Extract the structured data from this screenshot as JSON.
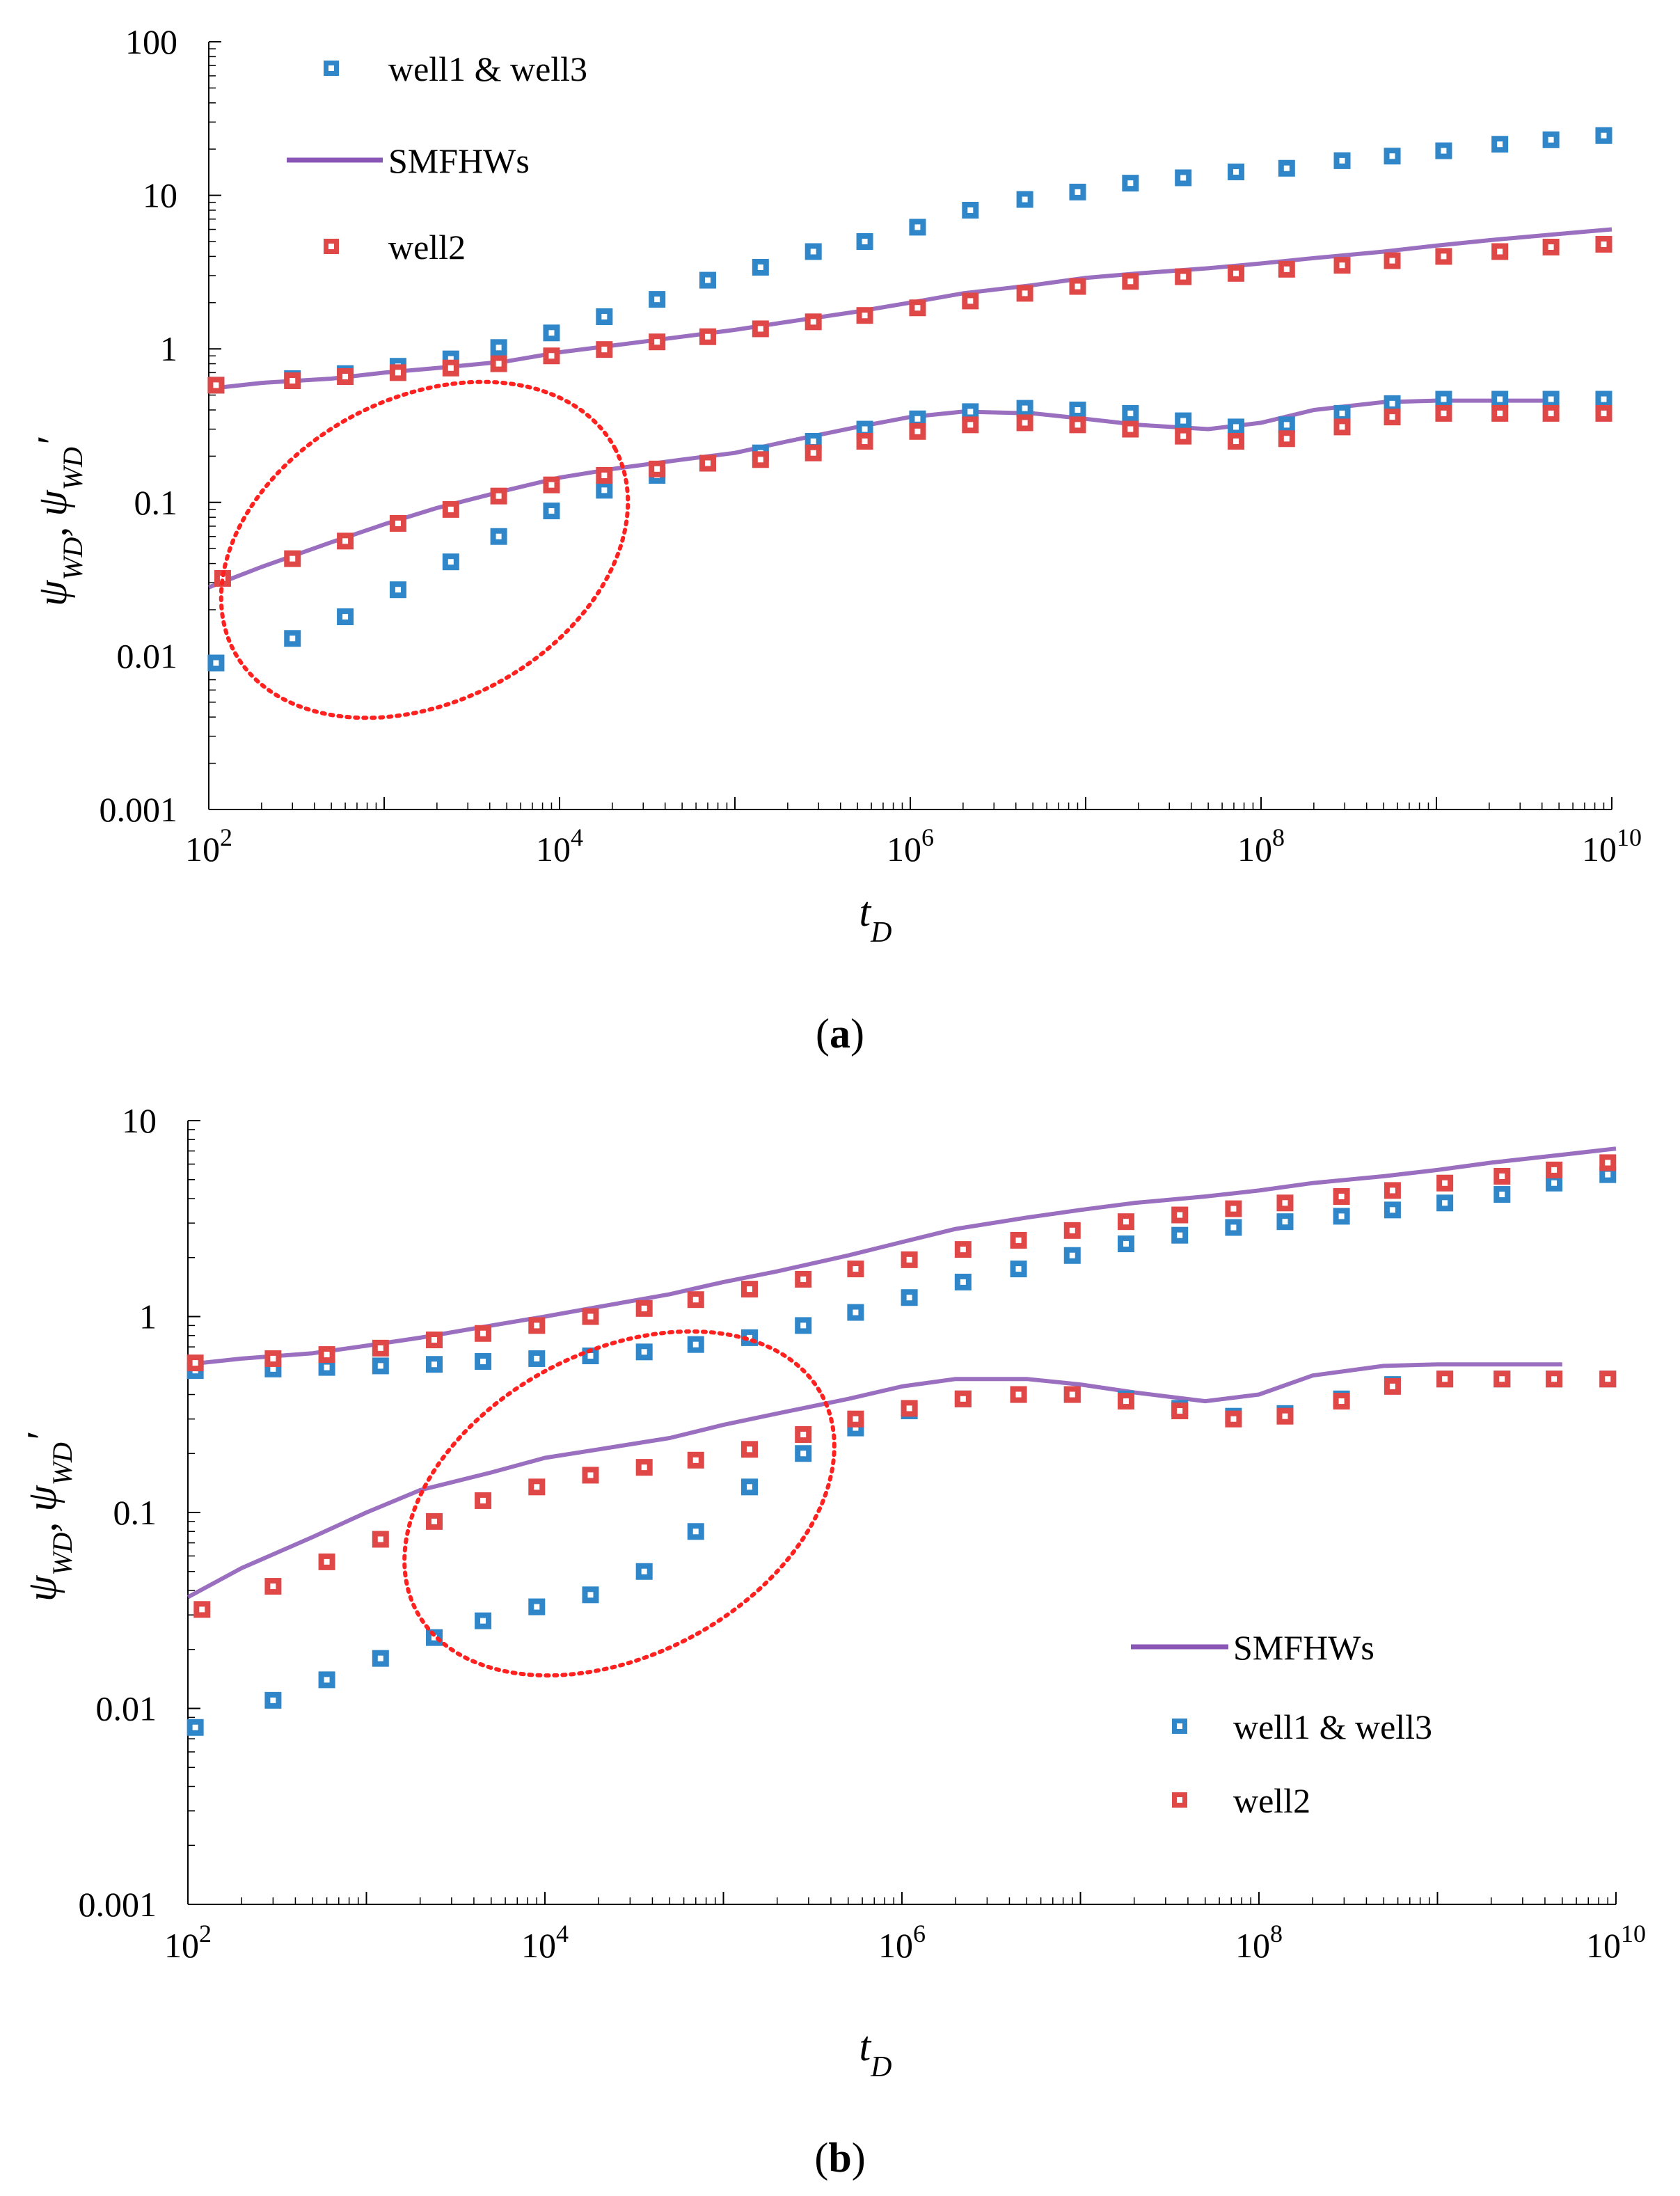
{
  "figure": {
    "panel_a_label": {
      "open": "(",
      "letter": "a",
      "close": ")"
    },
    "panel_b_label": {
      "open": "(",
      "letter": "b",
      "close": ")"
    }
  },
  "colors": {
    "blue": "#2f86c8",
    "red": "#e04848",
    "line": "#8a56b5",
    "ellipse": "#ff2020"
  },
  "chart_data": [
    {
      "type": "scatter",
      "panel": "a",
      "xscale": "log",
      "yscale": "log",
      "xlim": [
        100,
        10000000000
      ],
      "ylim": [
        0.001,
        100
      ],
      "xlabel": "tD",
      "ylabel": "ψWD, ψWD′",
      "xticks": [
        {
          "base": "10",
          "exp": "2"
        },
        {
          "base": "10",
          "exp": "4"
        },
        {
          "base": "10",
          "exp": "6"
        },
        {
          "base": "10",
          "exp": "8"
        },
        {
          "base": "10",
          "exp": "10"
        }
      ],
      "yticks": [
        "0.001",
        "0.01",
        "0.1",
        "1",
        "10",
        "100"
      ],
      "legend": {
        "position": "top-left",
        "entries": [
          "well1 & well3",
          "SMFHWs",
          "well2"
        ]
      },
      "series": [
        {
          "name": "well1 & well3",
          "kind": "markers",
          "color": "#2f86c8",
          "x": [
            110,
            300,
            600,
            1200,
            2400,
            4500,
            9000,
            18000,
            36000,
            70000,
            140000,
            280000,
            550000,
            1100000,
            2200000,
            4500000,
            9000000,
            18000000,
            36000000,
            72000000,
            140000000,
            290000000,
            560000000,
            1100000000,
            2300000000,
            4500000000,
            9000000000
          ],
          "y": [
            0.58,
            0.64,
            0.69,
            0.77,
            0.86,
            1.02,
            1.27,
            1.62,
            2.1,
            2.8,
            3.4,
            4.3,
            5.0,
            6.2,
            8.0,
            9.4,
            10.5,
            12.0,
            13.0,
            14.2,
            15.0,
            16.8,
            18.0,
            19.5,
            21.5,
            23.0,
            24.5
          ]
        },
        {
          "name": "well1 & well3 derivative",
          "kind": "markers",
          "color": "#2f86c8",
          "x": [
            110,
            300,
            600,
            1200,
            2400,
            4500,
            9000,
            18000,
            36000,
            70000,
            140000,
            280000,
            550000,
            1100000,
            2200000,
            4500000,
            9000000,
            18000000,
            36000000,
            72000000,
            140000000,
            290000000,
            560000000,
            1100000000,
            2300000000,
            4500000000,
            9000000000
          ],
          "y": [
            0.009,
            0.013,
            0.018,
            0.027,
            0.041,
            0.06,
            0.088,
            0.12,
            0.15,
            0.18,
            0.21,
            0.25,
            0.3,
            0.35,
            0.39,
            0.41,
            0.4,
            0.38,
            0.34,
            0.31,
            0.32,
            0.38,
            0.44,
            0.47,
            0.47,
            0.47,
            0.47
          ]
        },
        {
          "name": "well2",
          "kind": "markers",
          "color": "#e04848",
          "x": [
            110,
            300,
            600,
            1200,
            2400,
            4500,
            9000,
            18000,
            36000,
            70000,
            140000,
            280000,
            550000,
            1100000,
            2200000,
            4500000,
            9000000,
            18000000,
            36000000,
            72000000,
            140000000,
            290000000,
            560000000,
            1100000000,
            2300000000,
            4500000000,
            9000000000
          ],
          "y": [
            0.58,
            0.62,
            0.66,
            0.7,
            0.75,
            0.8,
            0.9,
            0.99,
            1.11,
            1.2,
            1.35,
            1.5,
            1.65,
            1.85,
            2.05,
            2.3,
            2.55,
            2.75,
            2.95,
            3.1,
            3.3,
            3.5,
            3.75,
            4.0,
            4.3,
            4.6,
            4.8
          ]
        },
        {
          "name": "well2 derivative",
          "kind": "markers",
          "color": "#e04848",
          "x": [
            120,
            300,
            600,
            1200,
            2400,
            4500,
            9000,
            18000,
            36000,
            70000,
            140000,
            280000,
            550000,
            1100000,
            2200000,
            4500000,
            9000000,
            18000000,
            36000000,
            72000000,
            140000000,
            290000000,
            560000000,
            1100000000,
            2300000000,
            4500000000,
            9000000000
          ],
          "y": [
            0.032,
            0.043,
            0.056,
            0.073,
            0.09,
            0.11,
            0.13,
            0.15,
            0.165,
            0.18,
            0.19,
            0.21,
            0.25,
            0.29,
            0.32,
            0.33,
            0.32,
            0.3,
            0.27,
            0.25,
            0.26,
            0.31,
            0.36,
            0.38,
            0.38,
            0.38,
            0.38
          ]
        },
        {
          "name": "SMFHWs",
          "kind": "line",
          "color": "#8a56b5",
          "x": [
            100,
            200,
            500,
            1000,
            2000,
            5000,
            10000,
            20000,
            50000,
            100000,
            200000,
            500000,
            1000000,
            2000000,
            5000000,
            10000000,
            20000000,
            50000000,
            100000000,
            200000000,
            500000000,
            1000000000,
            2000000000,
            5000000000,
            10000000000
          ],
          "y": [
            0.55,
            0.6,
            0.64,
            0.7,
            0.75,
            0.83,
            0.95,
            1.05,
            1.2,
            1.33,
            1.5,
            1.75,
            2.0,
            2.3,
            2.6,
            2.9,
            3.1,
            3.35,
            3.6,
            3.9,
            4.3,
            4.7,
            5.1,
            5.6,
            6.0
          ]
        },
        {
          "name": "SMFHWs derivative",
          "kind": "line",
          "color": "#8a56b5",
          "x": [
            100,
            200,
            500,
            1000,
            2000,
            5000,
            10000,
            20000,
            50000,
            100000,
            200000,
            500000,
            1000000,
            2000000,
            5000000,
            10000000,
            20000000,
            50000000,
            100000000,
            200000000,
            500000000,
            1000000000,
            2000000000,
            5000000000
          ],
          "y": [
            0.028,
            0.038,
            0.055,
            0.072,
            0.092,
            0.12,
            0.145,
            0.165,
            0.19,
            0.21,
            0.25,
            0.31,
            0.36,
            0.39,
            0.38,
            0.35,
            0.32,
            0.3,
            0.33,
            0.4,
            0.45,
            0.46,
            0.46,
            0.46
          ]
        }
      ]
    },
    {
      "type": "scatter",
      "panel": "b",
      "xscale": "log",
      "yscale": "log",
      "xlim": [
        100,
        10000000000
      ],
      "ylim": [
        0.001,
        10
      ],
      "xlabel": "tD",
      "ylabel": "ψWD, ψWD′",
      "xticks": [
        {
          "base": "10",
          "exp": "2"
        },
        {
          "base": "10",
          "exp": "4"
        },
        {
          "base": "10",
          "exp": "6"
        },
        {
          "base": "10",
          "exp": "8"
        },
        {
          "base": "10",
          "exp": "10"
        }
      ],
      "yticks": [
        "0.001",
        "0.01",
        "0.1",
        "1",
        "10"
      ],
      "legend": {
        "position": "bottom-right",
        "entries": [
          "SMFHWs",
          "well1 & well3",
          "well2"
        ]
      },
      "series": [
        {
          "name": "well1 & well3",
          "kind": "markers",
          "color": "#2f86c8",
          "x": [
            110,
            300,
            600,
            1200,
            2400,
            4500,
            9000,
            18000,
            36000,
            70000,
            140000,
            280000,
            550000,
            1100000,
            2200000,
            4500000,
            9000000,
            18000000,
            36000000,
            72000000,
            140000000,
            290000000,
            560000000,
            1100000000,
            2300000000,
            4500000000,
            9000000000
          ],
          "y": [
            0.53,
            0.54,
            0.55,
            0.56,
            0.57,
            0.59,
            0.61,
            0.63,
            0.66,
            0.72,
            0.78,
            0.9,
            1.05,
            1.25,
            1.5,
            1.75,
            2.05,
            2.35,
            2.6,
            2.85,
            3.05,
            3.25,
            3.5,
            3.8,
            4.2,
            4.8,
            5.3
          ]
        },
        {
          "name": "well1 & well3 derivative",
          "kind": "markers",
          "color": "#2f86c8",
          "x": [
            110,
            300,
            600,
            1200,
            2400,
            4500,
            9000,
            18000,
            36000,
            70000,
            140000,
            280000,
            550000,
            1100000,
            2200000,
            4500000,
            9000000,
            18000000,
            36000000,
            72000000,
            140000000,
            290000000,
            560000000,
            1100000000,
            2300000000,
            4500000000,
            9000000000
          ],
          "y": [
            0.008,
            0.011,
            0.014,
            0.018,
            0.023,
            0.028,
            0.033,
            0.038,
            0.05,
            0.08,
            0.135,
            0.2,
            0.27,
            0.33,
            0.38,
            0.4,
            0.4,
            0.38,
            0.34,
            0.31,
            0.32,
            0.38,
            0.45,
            0.48,
            0.48,
            0.48,
            0.48
          ]
        },
        {
          "name": "well2",
          "kind": "markers",
          "color": "#e04848",
          "x": [
            110,
            300,
            600,
            1200,
            2400,
            4500,
            9000,
            18000,
            36000,
            70000,
            140000,
            280000,
            550000,
            1100000,
            2200000,
            4500000,
            9000000,
            18000000,
            36000000,
            72000000,
            140000000,
            290000000,
            560000000,
            1100000000,
            2300000000,
            4500000000,
            9000000000
          ],
          "y": [
            0.58,
            0.61,
            0.64,
            0.69,
            0.76,
            0.82,
            0.9,
            1.0,
            1.1,
            1.22,
            1.38,
            1.55,
            1.75,
            1.95,
            2.2,
            2.45,
            2.75,
            3.05,
            3.3,
            3.55,
            3.8,
            4.1,
            4.4,
            4.8,
            5.2,
            5.6,
            6.1
          ]
        },
        {
          "name": "well2 derivative",
          "kind": "markers",
          "color": "#e04848",
          "x": [
            120,
            300,
            600,
            1200,
            2400,
            4500,
            9000,
            18000,
            36000,
            70000,
            140000,
            280000,
            550000,
            1100000,
            2200000,
            4500000,
            9000000,
            18000000,
            36000000,
            72000000,
            140000000,
            290000000,
            560000000,
            1100000000,
            2300000000,
            4500000000,
            9000000000
          ],
          "y": [
            0.032,
            0.042,
            0.056,
            0.073,
            0.09,
            0.115,
            0.135,
            0.155,
            0.17,
            0.185,
            0.21,
            0.25,
            0.3,
            0.34,
            0.38,
            0.4,
            0.4,
            0.37,
            0.33,
            0.3,
            0.31,
            0.37,
            0.44,
            0.48,
            0.48,
            0.48,
            0.48
          ]
        },
        {
          "name": "SMFHWs",
          "kind": "line",
          "color": "#8a56b5",
          "x": [
            100,
            200,
            500,
            1000,
            2000,
            5000,
            10000,
            20000,
            50000,
            100000,
            200000,
            500000,
            1000000,
            2000000,
            5000000,
            10000000,
            20000000,
            50000000,
            100000000,
            200000000,
            500000000,
            1000000000,
            2000000000,
            5000000000,
            10000000000
          ],
          "y": [
            0.57,
            0.61,
            0.65,
            0.71,
            0.78,
            0.9,
            1.0,
            1.12,
            1.3,
            1.5,
            1.7,
            2.05,
            2.4,
            2.8,
            3.2,
            3.5,
            3.8,
            4.1,
            4.4,
            4.8,
            5.2,
            5.6,
            6.1,
            6.7,
            7.2
          ]
        },
        {
          "name": "SMFHWs derivative",
          "kind": "line",
          "color": "#8a56b5",
          "x": [
            100,
            200,
            500,
            1000,
            2000,
            5000,
            10000,
            20000,
            50000,
            100000,
            200000,
            500000,
            1000000,
            2000000,
            5000000,
            10000000,
            20000000,
            50000000,
            100000000,
            200000000,
            500000000,
            1000000000,
            2000000000,
            5000000000
          ],
          "y": [
            0.037,
            0.052,
            0.075,
            0.1,
            0.13,
            0.16,
            0.19,
            0.21,
            0.24,
            0.28,
            0.32,
            0.38,
            0.44,
            0.48,
            0.48,
            0.45,
            0.41,
            0.37,
            0.4,
            0.5,
            0.56,
            0.57,
            0.57,
            0.57
          ]
        }
      ]
    }
  ]
}
